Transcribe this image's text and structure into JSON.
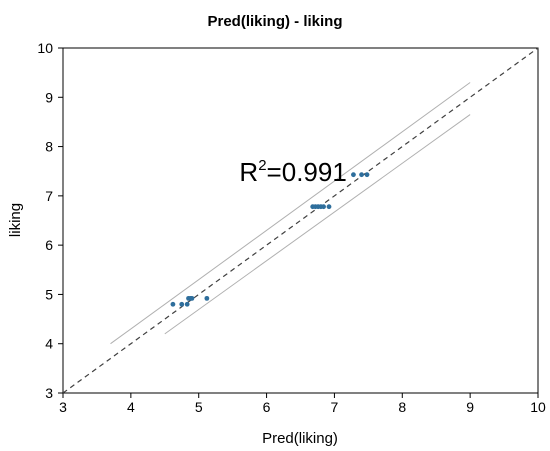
{
  "chart_data": {
    "type": "scatter",
    "title": "Pred(liking) - liking",
    "xlabel": "Pred(liking)",
    "ylabel": "liking",
    "xlim": [
      3,
      10
    ],
    "ylim": [
      3,
      10
    ],
    "xticks": [
      3,
      4,
      5,
      6,
      7,
      8,
      9,
      10
    ],
    "yticks": [
      3,
      4,
      5,
      6,
      7,
      8,
      9,
      10
    ],
    "grid": false,
    "annotation": {
      "base": "R",
      "sup": "2",
      "rest": "=0.991",
      "x": 5.6,
      "y": 7.3
    },
    "marker_color": "#2e6e9c",
    "identity_line": {
      "x": [
        3,
        10
      ],
      "y": [
        3,
        10
      ],
      "style": "dashed",
      "color": "#404040"
    },
    "confidence_bands": [
      {
        "x": [
          3.7,
          9.0
        ],
        "y": [
          4.0,
          9.3
        ],
        "color": "#b0b0b0"
      },
      {
        "x": [
          4.5,
          9.0
        ],
        "y": [
          4.2,
          8.65
        ],
        "color": "#b0b0b0"
      }
    ],
    "points": [
      {
        "x": 4.62,
        "y": 4.8
      },
      {
        "x": 4.75,
        "y": 4.8
      },
      {
        "x": 4.83,
        "y": 4.8
      },
      {
        "x": 4.85,
        "y": 4.92
      },
      {
        "x": 4.88,
        "y": 4.92
      },
      {
        "x": 4.9,
        "y": 4.92
      },
      {
        "x": 5.12,
        "y": 4.92
      },
      {
        "x": 6.68,
        "y": 6.78
      },
      {
        "x": 6.72,
        "y": 6.78
      },
      {
        "x": 6.76,
        "y": 6.78
      },
      {
        "x": 6.8,
        "y": 6.78
      },
      {
        "x": 6.84,
        "y": 6.78
      },
      {
        "x": 6.92,
        "y": 6.78
      },
      {
        "x": 7.28,
        "y": 7.43
      },
      {
        "x": 7.4,
        "y": 7.43
      },
      {
        "x": 7.48,
        "y": 7.43
      }
    ]
  }
}
